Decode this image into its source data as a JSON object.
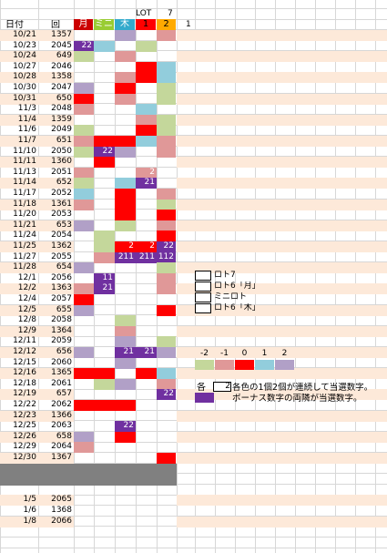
{
  "header": {
    "date_label": "日付",
    "round_label": "回",
    "lot_label": "LOT",
    "lot_num": "7",
    "extra_num": "1",
    "cols": [
      {
        "label": "月",
        "bg": "#cc0000",
        "fg": "#ffffff"
      },
      {
        "label": "ミニ",
        "bg": "#99cc33",
        "fg": "#ffffff"
      },
      {
        "label": "木",
        "bg": "#33aacc",
        "fg": "#ffffff"
      },
      {
        "label": "1",
        "bg": "#ff0000",
        "fg": "#000000"
      },
      {
        "label": "2",
        "bg": "#ffaa00",
        "fg": "#000000"
      }
    ]
  },
  "palette": {
    "R": "#ff0000",
    "P": "#e09898",
    "G": "#c4d79b",
    "B": "#92cddc",
    "V": "#b1a0c7",
    "K": "#7030a0",
    "H": "#fde9d9",
    "W": "#ffffff",
    "S": "#808080"
  },
  "rows": [
    {
      "date": "10/21",
      "round": "1357",
      "c": [
        "",
        "",
        "V",
        "",
        "P"
      ]
    },
    {
      "date": "10/23",
      "round": "2045",
      "c": [
        "K",
        "B",
        "",
        "G",
        ""
      ],
      "t": {
        "0": "22"
      }
    },
    {
      "date": "10/24",
      "round": "649",
      "c": [
        "G",
        "",
        "P",
        "",
        ""
      ]
    },
    {
      "date": "10/27",
      "round": "2046",
      "c": [
        "",
        "",
        "",
        "R",
        "B"
      ]
    },
    {
      "date": "10/28",
      "round": "1358",
      "c": [
        "",
        "",
        "P",
        "R",
        "B"
      ]
    },
    {
      "date": "10/30",
      "round": "2047",
      "c": [
        "V",
        "",
        "R",
        "",
        "G"
      ]
    },
    {
      "date": "10/31",
      "round": "650",
      "c": [
        "R",
        "",
        "P",
        "",
        "G"
      ]
    },
    {
      "date": "11/3",
      "round": "2048",
      "c": [
        "P",
        "",
        "",
        "B",
        ""
      ]
    },
    {
      "date": "11/4",
      "round": "1359",
      "c": [
        "",
        "",
        "",
        "P",
        "G"
      ]
    },
    {
      "date": "11/6",
      "round": "2049",
      "c": [
        "G",
        "",
        "",
        "R",
        "G"
      ]
    },
    {
      "date": "11/7",
      "round": "651",
      "c": [
        "P",
        "R",
        "R",
        "B",
        "P"
      ]
    },
    {
      "date": "11/10",
      "round": "2050",
      "c": [
        "G",
        "K",
        "V",
        "",
        "P"
      ],
      "t": {
        "1": "22"
      }
    },
    {
      "date": "11/11",
      "round": "1360",
      "c": [
        "",
        "R",
        "",
        "",
        ""
      ]
    },
    {
      "date": "11/13",
      "round": "2051",
      "c": [
        "P",
        "",
        "",
        "P",
        ""
      ],
      "t": {
        "3": "2"
      }
    },
    {
      "date": "11/14",
      "round": "652",
      "c": [
        "G",
        "",
        "B",
        "K",
        ""
      ],
      "t": {
        "3": "21"
      }
    },
    {
      "date": "11/17",
      "round": "2052",
      "c": [
        "B",
        "",
        "R",
        "",
        "P"
      ]
    },
    {
      "date": "11/18",
      "round": "1361",
      "c": [
        "P",
        "",
        "R",
        "",
        "G"
      ]
    },
    {
      "date": "11/20",
      "round": "2053",
      "c": [
        "",
        "",
        "R",
        "",
        "R"
      ]
    },
    {
      "date": "11/21",
      "round": "653",
      "c": [
        "V",
        "",
        "G",
        "",
        "P"
      ]
    },
    {
      "date": "11/24",
      "round": "2054",
      "c": [
        "",
        "G",
        "",
        "",
        "R"
      ]
    },
    {
      "date": "11/25",
      "round": "1362",
      "c": [
        "",
        "G",
        "R",
        "R",
        "K"
      ],
      "t": {
        "2": "2",
        "3": "2",
        "4": "22"
      }
    },
    {
      "date": "11/27",
      "round": "2055",
      "c": [
        "",
        "P",
        "K",
        "K",
        "K"
      ],
      "t": {
        "2": "211",
        "3": "211",
        "4": "112"
      }
    },
    {
      "date": "11/28",
      "round": "654",
      "c": [
        "V",
        "",
        "",
        "",
        "G"
      ]
    },
    {
      "date": "12/1",
      "round": "2056",
      "c": [
        "",
        "K",
        "",
        "",
        "P"
      ],
      "t": {
        "1": "11"
      }
    },
    {
      "date": "12/2",
      "round": "1363",
      "c": [
        "P",
        "K",
        "",
        "",
        "P"
      ],
      "t": {
        "1": "21"
      }
    },
    {
      "date": "12/4",
      "round": "2057",
      "c": [
        "R",
        "",
        "",
        "",
        ""
      ]
    },
    {
      "date": "12/5",
      "round": "655",
      "c": [
        "V",
        "",
        "",
        "",
        "R"
      ]
    },
    {
      "date": "12/8",
      "round": "2058",
      "c": [
        "",
        "",
        "G",
        "",
        ""
      ]
    },
    {
      "date": "12/9",
      "round": "1364",
      "c": [
        "",
        "",
        "P",
        "",
        ""
      ]
    },
    {
      "date": "12/11",
      "round": "2059",
      "c": [
        "",
        "",
        "V",
        "",
        "G"
      ]
    },
    {
      "date": "12/12",
      "round": "656",
      "c": [
        "V",
        "",
        "K",
        "K",
        "V"
      ],
      "t": {
        "2": "21",
        "3": "21"
      }
    },
    {
      "date": "12/15",
      "round": "2060",
      "c": [
        "",
        "",
        "V",
        "",
        ""
      ]
    },
    {
      "date": "12/16",
      "round": "1365",
      "c": [
        "R",
        "R",
        "",
        "R",
        "B"
      ]
    },
    {
      "date": "12/18",
      "round": "2061",
      "c": [
        "",
        "G",
        "V",
        "",
        "P"
      ]
    },
    {
      "date": "12/19",
      "round": "657",
      "c": [
        "",
        "",
        "",
        "",
        "K"
      ],
      "t": {
        "4": "22"
      }
    },
    {
      "date": "12/22",
      "round": "2062",
      "c": [
        "R",
        "R",
        "R",
        "",
        ""
      ]
    },
    {
      "date": "12/23",
      "round": "1366",
      "c": [
        "",
        "",
        "",
        "",
        ""
      ]
    },
    {
      "date": "12/25",
      "round": "2063",
      "c": [
        "",
        "",
        "K",
        "",
        ""
      ],
      "t": {
        "2": "22"
      }
    },
    {
      "date": "12/26",
      "round": "658",
      "c": [
        "V",
        "",
        "R",
        "",
        ""
      ]
    },
    {
      "date": "12/29",
      "round": "2064",
      "c": [
        "P",
        "",
        "",
        "",
        ""
      ]
    },
    {
      "date": "12/30",
      "round": "1367",
      "c": [
        "",
        "",
        "",
        "",
        "R"
      ]
    },
    {
      "sep": true
    },
    {
      "sep": true
    },
    {
      "date": "",
      "round": "",
      "c": [
        "",
        "",
        "",
        "",
        ""
      ]
    },
    {
      "date": "1/5",
      "round": "2065",
      "c": [
        "",
        "",
        "",
        "",
        ""
      ]
    },
    {
      "date": "1/6",
      "round": "1368",
      "c": [
        "",
        "",
        "",
        "",
        ""
      ]
    },
    {
      "date": "1/8",
      "round": "2066",
      "c": [
        "",
        "",
        "",
        "",
        ""
      ]
    }
  ],
  "legend": {
    "items": [
      "ロト7",
      "ロト6「月」",
      "ミニロト",
      "ロト6「木」"
    ],
    "scale_labels": [
      "-2",
      "-1",
      "0",
      "1",
      "2"
    ],
    "scale_colors": [
      "#c4d79b",
      "#e09898",
      "#ff0000",
      "#92cddc",
      "#b1a0c7"
    ],
    "note_prefix": "各",
    "note_box": "2",
    "note1": "各色の1個2個が連続して当選数字。",
    "note2": "ボーナス数字の両隣が当選数字。"
  }
}
